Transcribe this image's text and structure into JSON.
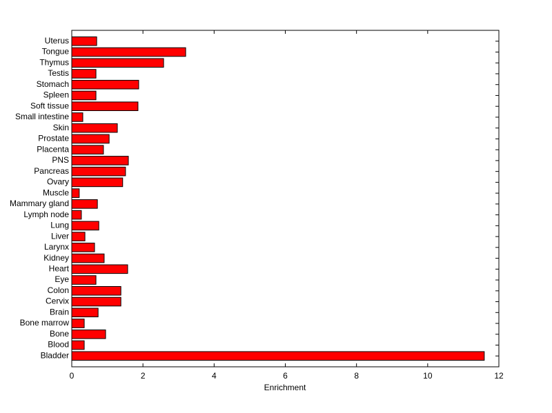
{
  "chart_data": {
    "type": "barh",
    "xlabel": "Enrichment",
    "categories": [
      "Bladder",
      "Blood",
      "Bone",
      "Bone marrow",
      "Brain",
      "Cervix",
      "Colon",
      "Eye",
      "Heart",
      "Kidney",
      "Larynx",
      "Liver",
      "Lung",
      "Lymph node",
      "Mammary gland",
      "Muscle",
      "Ovary",
      "Pancreas",
      "PNS",
      "Placenta",
      "Prostate",
      "Skin",
      "Small intestine",
      "Soft tissue",
      "Spleen",
      "Stomach",
      "Testis",
      "Thymus",
      "Tongue",
      "Uterus"
    ],
    "values": [
      11.59,
      0.35,
      0.95,
      0.35,
      0.74,
      1.38,
      1.38,
      0.68,
      1.57,
      0.91,
      0.64,
      0.37,
      0.76,
      0.27,
      0.72,
      0.21,
      1.43,
      1.51,
      1.59,
      0.89,
      1.05,
      1.28,
      0.31,
      1.86,
      0.68,
      1.88,
      0.68,
      2.58,
      3.2,
      0.7
    ],
    "color": "#ff0000",
    "xlim": [
      0,
      12
    ],
    "xticks": [
      0,
      2,
      4,
      6,
      8,
      10,
      12
    ]
  }
}
